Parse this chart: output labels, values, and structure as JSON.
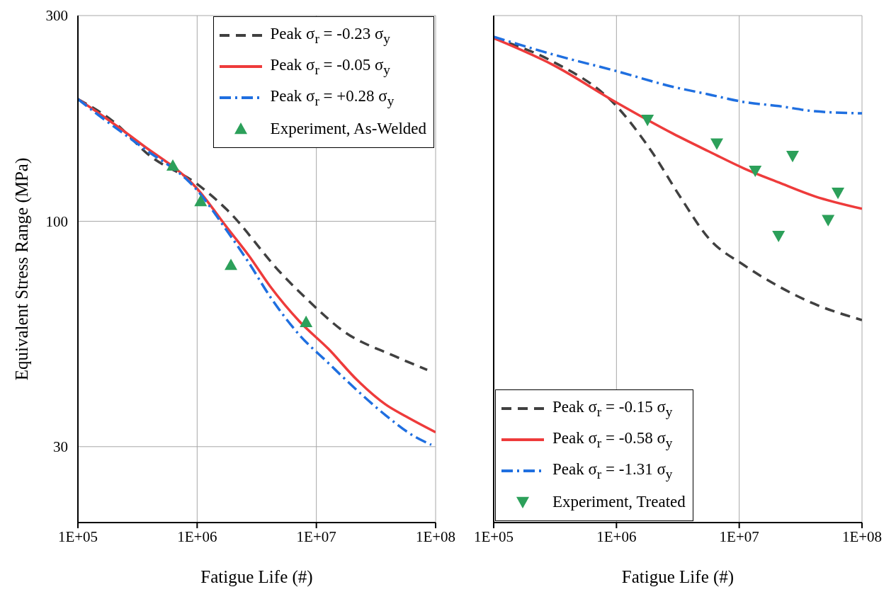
{
  "chart_data": [
    {
      "type": "line",
      "xlabel": "Fatigue Life (#)",
      "ylabel": "Equivalent Stress Range (MPa)",
      "log": "xy",
      "xlim": [
        100000,
        100000000
      ],
      "ylim": [
        20,
        300
      ],
      "xticks": [
        {
          "value": 100000,
          "label": "1E+05"
        },
        {
          "value": 1000000,
          "label": "1E+06"
        },
        {
          "value": 10000000,
          "label": "1E+07"
        },
        {
          "value": 100000000,
          "label": "1E+08"
        }
      ],
      "yticks": [
        30,
        100,
        300
      ],
      "grid": true,
      "legend": "top right",
      "series": [
        {
          "name": "Peak σ$_{r}$ = -0.23 σ$_{y}$",
          "color": "#404040",
          "line_style": "dashed",
          "marker": "none",
          "x": [
            100000,
            200000,
            400000,
            1000000,
            1800000,
            5000000,
            8500000,
            17000000,
            45000000,
            85000000
          ],
          "values": [
            192,
            170,
            142,
            122,
            106,
            76,
            65.6,
            55.5,
            48.7,
            45.2
          ]
        },
        {
          "name": "Peak σ$_{r}$ = -0.05 σ$_{y}$",
          "color": "#ee3b3b",
          "line_style": "solid",
          "marker": "none",
          "x": [
            100000,
            150000,
            340000,
            1000000,
            1780000,
            2700000,
            4100000,
            7200000,
            12600000,
            22000000,
            38000000,
            57000000,
            100000000
          ],
          "values": [
            192,
            178,
            151,
            119,
            96.7,
            83.4,
            70.6,
            58.6,
            50.6,
            42.8,
            37.6,
            35.2,
            32.4
          ]
        },
        {
          "name": "Peak σ$_{r}$ = +0.28 σ$_{y}$",
          "color": "#1f6fe0",
          "line_style": "dashdot",
          "marker": "none",
          "x": [
            100000,
            150000,
            340000,
            1000000,
            1780000,
            2700000,
            4100000,
            7200000,
            12600000,
            22000000,
            38000000,
            65000000,
            92000000
          ],
          "values": [
            192,
            176,
            149,
            118,
            95,
            80.3,
            66.8,
            54.5,
            46.9,
            40.5,
            35.5,
            31.8,
            30.3
          ]
        },
        {
          "name": "Experiment, As-Welded",
          "type": "scatter",
          "color": "#2ca05a",
          "marker": "triangle",
          "x": [
            625000,
            1070000,
            1920000,
            8200000
          ],
          "values": [
            134.6,
            111.4,
            79.2,
            58.4
          ]
        }
      ]
    },
    {
      "type": "line",
      "xlabel": "Fatigue Life (#)",
      "log": "xy",
      "xlim": [
        100000,
        100000000
      ],
      "ylim": [
        20,
        300
      ],
      "tick_labels": "x",
      "xticks": [
        {
          "value": 100000,
          "label": "1E+05"
        },
        {
          "value": 1000000,
          "label": "1E+06"
        },
        {
          "value": 10000000,
          "label": "1E+07"
        },
        {
          "value": 100000000,
          "label": "1E+08"
        }
      ],
      "yticks": [
        30,
        100,
        300
      ],
      "grid": true,
      "legend": "bottom left",
      "series": [
        {
          "name": "Peak σ$_{r}$ = -0.15 σ$_{y}$",
          "color": "#404040",
          "line_style": "dashed",
          "marker": "none",
          "x": [
            100000,
            300000,
            1000000,
            1940000,
            3300000,
            5600000,
            11000000,
            21000000,
            41000000,
            100000000
          ],
          "values": [
            266,
            235,
            185,
            145,
            114,
            91.5,
            79,
            70.6,
            64.3,
            59
          ]
        },
        {
          "name": "Peak σ$_{r}$ = -0.58 σ$_{y}$",
          "color": "#ee3b3b",
          "line_style": "solid",
          "marker": "none",
          "x": [
            100000,
            300000,
            1000000,
            2900000,
            5600000,
            11000000,
            21000000,
            41000000,
            100000000
          ],
          "values": [
            266,
            231,
            188.6,
            159.6,
            145.4,
            132.5,
            123,
            114.3,
            106.9
          ]
        },
        {
          "name": "Peak σ$_{r}$ = -1.31 σ$_{y}$",
          "color": "#1f6fe0",
          "line_style": "dashdot",
          "marker": "none",
          "x": [
            100000,
            300000,
            1000000,
            2900000,
            5600000,
            11000000,
            21000000,
            41000000,
            100000000
          ],
          "values": [
            268,
            244,
            223,
            205,
            197,
            189,
            185,
            180,
            178
          ]
        },
        {
          "name": "Experiment, Treated",
          "type": "scatter",
          "color": "#2ca05a",
          "marker": "triangle-down",
          "x": [
            1790000,
            6570000,
            13500000,
            27200000,
            20900000,
            53000000,
            63700000
          ],
          "values": [
            171.9,
            151.5,
            131,
            141.7,
            92.5,
            100.7,
            116.4
          ]
        }
      ]
    }
  ]
}
